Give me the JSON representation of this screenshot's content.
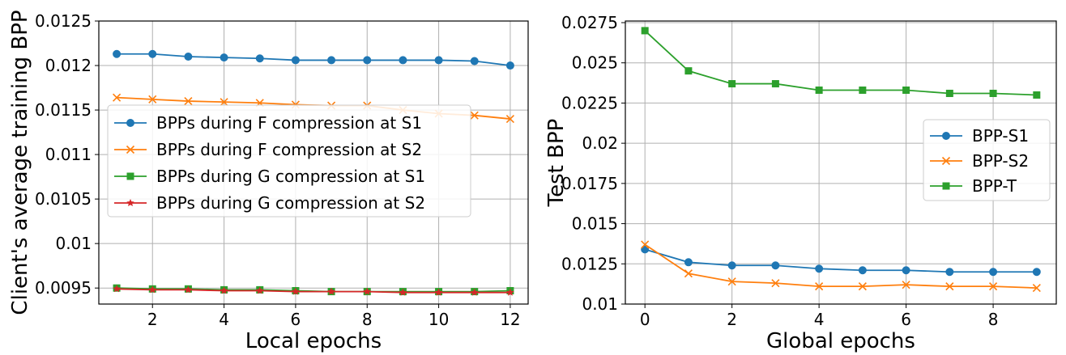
{
  "colors": {
    "blue": "#1f77b4",
    "orange": "#ff7f0e",
    "green": "#2ca02c",
    "red": "#d62728"
  },
  "chart_data": [
    {
      "type": "line",
      "title": "",
      "xlabel": "Local epochs",
      "ylabel": "Client's average training BPP",
      "xlim": [
        0.5,
        12.5
      ],
      "ylim": [
        0.00932,
        0.0125
      ],
      "xticks": [
        2,
        4,
        6,
        8,
        10,
        12
      ],
      "xtick_labels": [
        "2",
        "4",
        "6",
        "8",
        "10",
        "12"
      ],
      "yticks": [
        0.0095,
        0.01,
        0.0105,
        0.011,
        0.0115,
        0.012,
        0.0125
      ],
      "ytick_labels": [
        "0.0095",
        "0.01",
        "0.0105",
        "0.011",
        "0.0115",
        "0.012",
        "0.0125"
      ],
      "grid": true,
      "legend_position": "center-right",
      "x": [
        1,
        2,
        3,
        4,
        5,
        6,
        7,
        8,
        9,
        10,
        11,
        12
      ],
      "series": [
        {
          "name": "BPPs during F compression at S1",
          "color": "#1f77b4",
          "marker": "circle",
          "values": [
            0.01213,
            0.01213,
            0.0121,
            0.01209,
            0.01208,
            0.01206,
            0.01206,
            0.01206,
            0.01206,
            0.01206,
            0.01205,
            0.012
          ]
        },
        {
          "name": "BPPs during F compression at S2",
          "color": "#ff7f0e",
          "marker": "x",
          "values": [
            0.01164,
            0.01162,
            0.0116,
            0.01159,
            0.01158,
            0.01156,
            0.01155,
            0.01155,
            0.0115,
            0.01146,
            0.01144,
            0.0114
          ]
        },
        {
          "name": "BPPs during G compression at S1",
          "color": "#2ca02c",
          "marker": "square",
          "values": [
            0.0095,
            0.00949,
            0.00949,
            0.00948,
            0.00948,
            0.00947,
            0.00946,
            0.00946,
            0.00946,
            0.00946,
            0.00946,
            0.00947
          ]
        },
        {
          "name": "BPPs during G compression at S2",
          "color": "#d62728",
          "marker": "star",
          "values": [
            0.00949,
            0.00948,
            0.00948,
            0.00947,
            0.00947,
            0.00946,
            0.00946,
            0.00946,
            0.00945,
            0.00945,
            0.00945,
            0.00945
          ]
        }
      ]
    },
    {
      "type": "line",
      "title": "",
      "xlabel": "Global epochs",
      "ylabel": "Test BPP",
      "xlim": [
        -0.45,
        9.45
      ],
      "ylim": [
        0.01,
        0.0276
      ],
      "xticks": [
        0,
        2,
        4,
        6,
        8
      ],
      "xtick_labels": [
        "0",
        "2",
        "4",
        "6",
        "8"
      ],
      "yticks": [
        0.01,
        0.0125,
        0.015,
        0.0175,
        0.02,
        0.0225,
        0.025,
        0.0275
      ],
      "ytick_labels": [
        "0.01",
        "0.0125",
        "0.015",
        "0.0175",
        "0.02",
        "0.0225",
        "0.025",
        "0.0275"
      ],
      "grid": true,
      "legend_position": "center-right",
      "x": [
        0,
        1,
        2,
        3,
        4,
        5,
        6,
        7,
        8,
        9
      ],
      "series": [
        {
          "name": "BPP-S1",
          "color": "#1f77b4",
          "marker": "circle",
          "values": [
            0.0134,
            0.0126,
            0.0124,
            0.0124,
            0.0122,
            0.0121,
            0.0121,
            0.012,
            0.012,
            0.012
          ]
        },
        {
          "name": "BPP-S2",
          "color": "#ff7f0e",
          "marker": "x",
          "values": [
            0.0137,
            0.0119,
            0.0114,
            0.0113,
            0.0111,
            0.0111,
            0.0112,
            0.0111,
            0.0111,
            0.011
          ]
        },
        {
          "name": "BPP-T",
          "color": "#2ca02c",
          "marker": "square",
          "values": [
            0.027,
            0.0245,
            0.0237,
            0.0237,
            0.0233,
            0.0233,
            0.0233,
            0.0231,
            0.0231,
            0.023
          ]
        }
      ]
    }
  ]
}
